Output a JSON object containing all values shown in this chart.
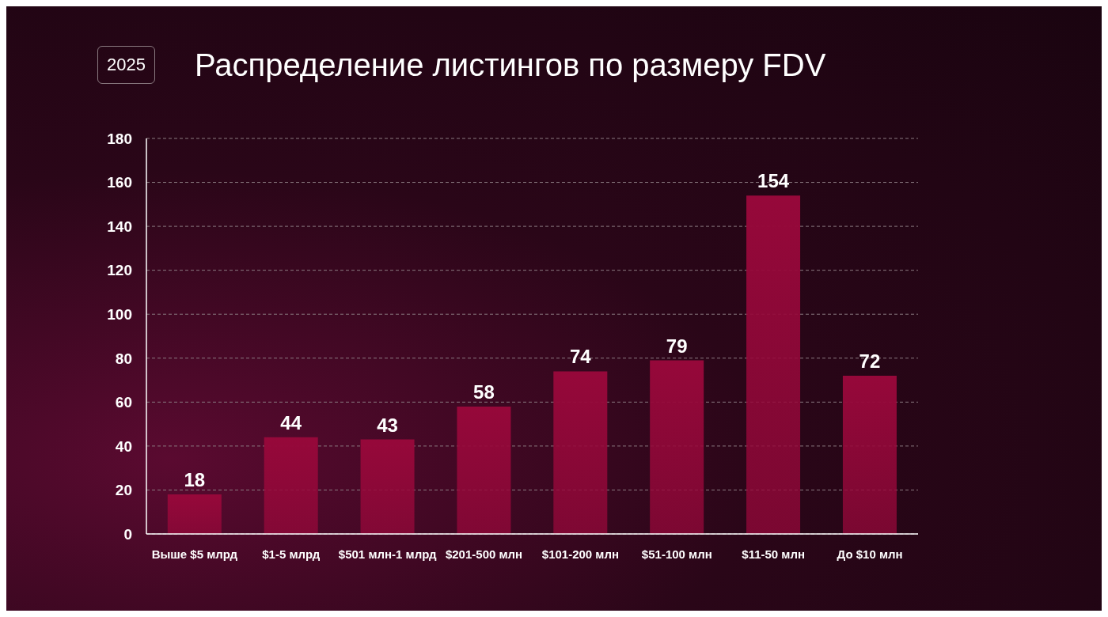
{
  "chart_data": {
    "type": "bar",
    "title": "Распределение листингов по размеру FDV",
    "subtitle": "2025",
    "categories": [
      "Выше $5 млрд",
      "$1-5 млрд",
      "$501 млн-1 млрд",
      "$201-500 млн",
      "$101-200 млн",
      "$51-100 млн",
      "$11-50 млн",
      "До $10 млн"
    ],
    "values": [
      18,
      44,
      43,
      58,
      74,
      79,
      154,
      72
    ],
    "color": "#96083a",
    "ylim": [
      0,
      180
    ],
    "yticks": [
      0,
      20,
      40,
      60,
      80,
      100,
      120,
      140,
      160,
      180
    ],
    "grid": "y",
    "data_labels": true
  }
}
